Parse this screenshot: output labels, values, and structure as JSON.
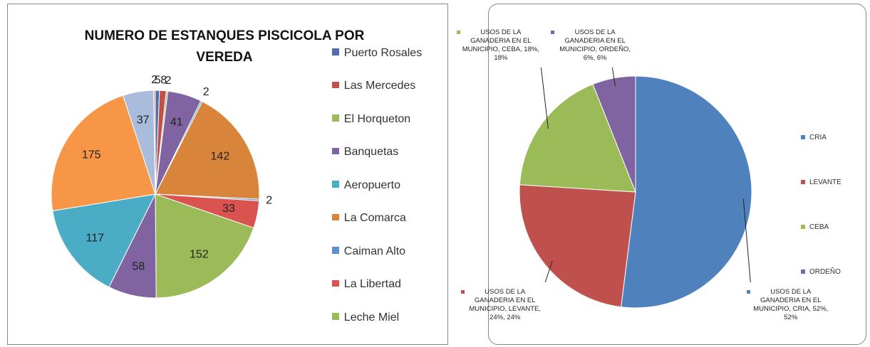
{
  "chart_data": [
    {
      "type": "pie",
      "title": "NUMERO DE ESTANQUES PISCICOLA POR VEREDA",
      "categories": [
        "Puerto Rosales",
        "Las Mercedes",
        "El Horqueton",
        "Banquetas",
        "Aeropuerto",
        "La Comarca",
        "Caiman Alto",
        "La Libertad",
        "Leche Miel",
        null,
        null,
        null,
        null,
        null
      ],
      "values": [
        5,
        8,
        2,
        41,
        2,
        142,
        2,
        33,
        152,
        58,
        117,
        175,
        37,
        2
      ],
      "colors": [
        "#4F6FA8",
        "#C0504D",
        "#9BBB59",
        "#8064A2",
        "#4BACC6",
        "#D9843B",
        "#5B8FD0",
        "#D9534F",
        "#9BBB59",
        "#8064A2",
        "#4BACC6",
        "#F79646",
        "#A9BCDC",
        "#D99694"
      ],
      "legend": "right"
    },
    {
      "type": "pie",
      "categories": [
        "CRIA",
        "LEVANTE",
        "CEBA",
        "ORDEÑO"
      ],
      "values": [
        52,
        24,
        18,
        6
      ],
      "value_labels": [
        "USOS DE LA GANADERIA EN EL MUNICIPIO, CRIA, 52%, 52%",
        "USOS DE LA GANADERIA EN EL MUNICIPIO, LEVANTE, 24%, 24%",
        "USOS DE LA GANADERIA EN EL MUNICIPIO, CEBA, 18%, 18%",
        "USOS DE LA GANADERIA EN EL MUNICIPIO, ORDEÑO, 6%, 6%"
      ],
      "colors": [
        "#4F81BD",
        "#C0504D",
        "#9BBB59",
        "#8064A2"
      ],
      "legend": "right"
    }
  ]
}
